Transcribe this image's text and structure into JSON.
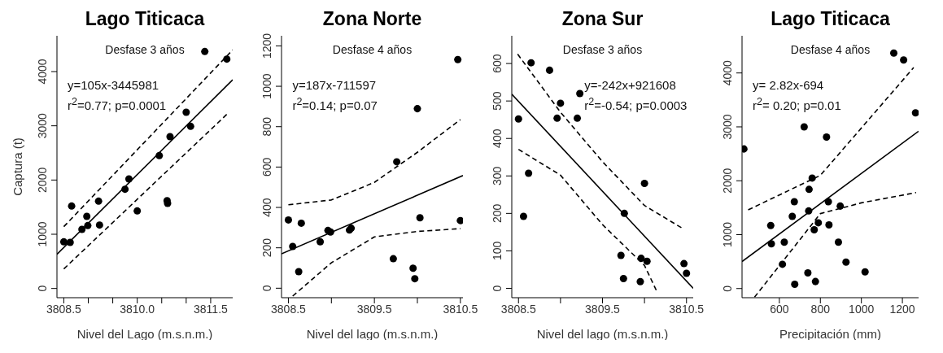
{
  "chart_data": [
    {
      "type": "scatter",
      "title": "Lago Titicaca",
      "xlabel": "Nivel del Lago (m.s.n.m.)",
      "ylabel": "Captura (t)",
      "annotations": [
        "Desfase 3 años",
        "y=105x-3445981",
        "r$^{2}$=0.77; p=0.0001"
      ],
      "xlim": [
        3808.36,
        3811.95
      ],
      "xticks": [
        3808.5,
        {
          "value": 3809,
          "label": null
        },
        {
          "value": 3809.5,
          "label": null
        },
        {
          "value": 3810,
          "label": "3810.0"
        },
        {
          "value": 3810.5,
          "label": null
        },
        {
          "value": 3811,
          "label": null
        },
        3811.5
      ],
      "ylim": [
        -170,
        4660
      ],
      "yticks": [
        0,
        1000,
        2000,
        3000,
        4000
      ],
      "series": [
        {
          "marker": "circle",
          "color": "#000000",
          "x": [
            3808.5,
            3808.63,
            3808.66,
            3808.87,
            3808.97,
            3808.99,
            3809.21,
            3809.23,
            3809.75,
            3809.83,
            3810.0,
            3810.45,
            3810.61,
            3810.62,
            3810.67,
            3811.0,
            3811.09,
            3811.38,
            3811.83
          ],
          "values": [
            860,
            850,
            1520,
            1090,
            1330,
            1160,
            1610,
            1170,
            1830,
            2020,
            1430,
            2450,
            1620,
            1570,
            2800,
            3250,
            2990,
            4370,
            4230
          ]
        },
        {
          "type": "line",
          "color": "#000000",
          "line_style": "solid",
          "x": [
            3808.36,
            3811.95
          ],
          "values": [
            630,
            3850
          ]
        },
        {
          "type": "line",
          "color": "#000000",
          "line_style": "dashed",
          "x": [
            3808.5,
            3811.95
          ],
          "values": [
            1140,
            4400
          ]
        },
        {
          "type": "line",
          "color": "#000000",
          "line_style": "dashed",
          "x": [
            3808.5,
            3811.84
          ],
          "values": [
            360,
            3220
          ]
        }
      ]
    },
    {
      "type": "scatter",
      "title": "Zona Norte",
      "xlabel": "Nivel del lago (m.s.n.m.)",
      "annotations": [
        "Desfase 4 años",
        "y=187x-711597",
        "r$^{2}$=0.14; p=0.07"
      ],
      "xlim": [
        3808.42,
        3810.53
      ],
      "xticks": [
        3808.5,
        {
          "value": 3809,
          "label": null
        },
        3809.5,
        {
          "value": 3810,
          "label": null
        },
        3810.5
      ],
      "ylim": [
        -47,
        1250
      ],
      "yticks": [
        0,
        200,
        400,
        600,
        800,
        1000,
        1200
      ],
      "series": [
        {
          "marker": "circle",
          "color": "#000000",
          "x": [
            3808.5,
            3808.55,
            3808.62,
            3808.65,
            3808.87,
            3808.96,
            3808.99,
            3809.21,
            3809.23,
            3809.72,
            3809.76,
            3809.95,
            3809.97,
            3810.0,
            3810.03,
            3810.47,
            3810.5
          ],
          "values": [
            338,
            207,
            82,
            322,
            230,
            286,
            278,
            288,
            297,
            146,
            626,
            99,
            47,
            889,
            349,
            1132,
            335
          ]
        },
        {
          "type": "line",
          "color": "#000000",
          "line_style": "solid",
          "x": [
            3808.42,
            3810.53
          ],
          "values": [
            170,
            558
          ]
        },
        {
          "type": "line",
          "color": "#000000",
          "line_style": "dashed",
          "x": [
            3808.5,
            3809,
            3809.5,
            3810,
            3810.5
          ],
          "values": [
            413,
            437,
            524,
            673,
            835
          ]
        },
        {
          "type": "line",
          "color": "#000000",
          "line_style": "dashed",
          "x": [
            3808.55,
            3809,
            3809.5,
            3810,
            3810.5
          ],
          "values": [
            -39,
            126,
            254,
            281,
            295
          ]
        }
      ]
    },
    {
      "type": "scatter",
      "title": "Zona Sur",
      "xlabel": "Nivel del lago (m.s.n.m.)",
      "annotations": [
        "Desfase 3 años",
        "y=-242x+921608",
        "r$^{2}$=-0.54; p=0.0003"
      ],
      "xlim": [
        3808.42,
        3810.58
      ],
      "xticks": [
        3808.5,
        {
          "value": 3809,
          "label": null
        },
        3809.5,
        {
          "value": 3810,
          "label": null
        },
        3810.5
      ],
      "ylim": [
        -25,
        674
      ],
      "yticks": [
        0,
        100,
        200,
        300,
        400,
        500,
        600
      ],
      "series": [
        {
          "marker": "circle",
          "color": "#000000",
          "x": [
            3808.5,
            3808.56,
            3808.62,
            3808.65,
            3808.87,
            3808.96,
            3809.0,
            3809.2,
            3809.23,
            3809.72,
            3809.75,
            3809.76,
            3809.95,
            3809.96,
            3810.0,
            3810.03,
            3810.47,
            3810.5
          ],
          "values": [
            452,
            192,
            307,
            602,
            582,
            454,
            494,
            454,
            520,
            88,
            26,
            200,
            18,
            80,
            280,
            72,
            66,
            40
          ]
        },
        {
          "type": "line",
          "color": "#000000",
          "line_style": "solid",
          "x": [
            3808.42,
            3810.58
          ],
          "values": [
            518,
            0
          ]
        },
        {
          "type": "line",
          "color": "#000000",
          "line_style": "dashed",
          "x": [
            3808.49,
            3809,
            3809.5,
            3810,
            3810.46
          ],
          "values": [
            625,
            470,
            338,
            221,
            159
          ]
        },
        {
          "type": "line",
          "color": "#000000",
          "line_style": "dashed",
          "x": [
            3808.5,
            3809,
            3809.5,
            3810,
            3810.14
          ],
          "values": [
            371,
            302,
            170,
            61,
            -5
          ]
        }
      ]
    },
    {
      "type": "scatter",
      "title": "Lago Titicaca",
      "xlabel": "Precipitación (mm)",
      "annotations": [
        "Desfase 4 años",
        "y= 2.82x-694",
        "r$^{2}$= 0.20; p=0.01"
      ],
      "xlim": [
        418,
        1279
      ],
      "xticks": [
        600,
        800,
        1000,
        1200
      ],
      "ylim": [
        -170,
        4690
      ],
      "yticks": [
        0,
        1000,
        2000,
        3000,
        4000
      ],
      "series": [
        {
          "marker": "circle",
          "color": "#000000",
          "x": [
            427,
            558,
            561,
            615,
            624,
            663,
            673,
            675,
            721,
            739,
            743,
            745,
            760,
            770,
            776,
            790,
            830,
            839,
            842,
            888,
            897,
            925,
            1018,
            1158,
            1206,
            1264
          ],
          "values": [
            2590,
            1170,
            830,
            450,
            860,
            1340,
            1610,
            80,
            3000,
            290,
            1440,
            1840,
            2050,
            1090,
            130,
            1220,
            2810,
            1610,
            1180,
            860,
            1530,
            490,
            310,
            4370,
            4240,
            3260
          ]
        },
        {
          "type": "line",
          "color": "#000000",
          "line_style": "solid",
          "x": [
            418,
            1279
          ],
          "values": [
            500,
            2920
          ]
        },
        {
          "type": "line",
          "color": "#000000",
          "line_style": "dashed",
          "x": [
            448,
            800,
            1255
          ],
          "values": [
            1460,
            2100,
            4100
          ]
        },
        {
          "type": "line",
          "color": "#000000",
          "line_style": "dashed",
          "x": [
            479,
            800,
            1000,
            1267
          ],
          "values": [
            -160,
            1390,
            1590,
            1780
          ]
        }
      ]
    }
  ]
}
